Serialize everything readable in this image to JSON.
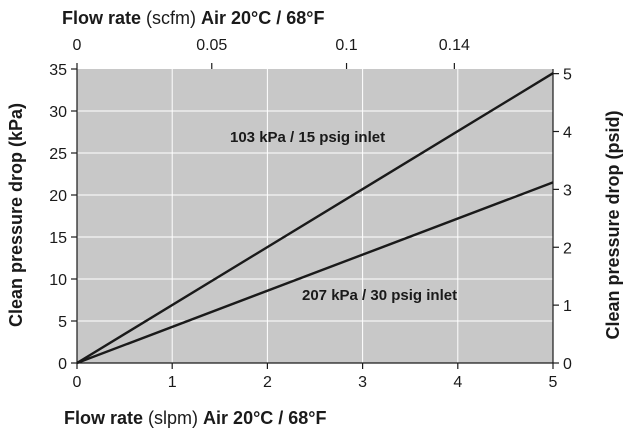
{
  "chart_data": {
    "type": "line",
    "plot_background": "#c8c8c8",
    "grid": true,
    "grid_color": "#ffffff",
    "line_color": "#1a1a1a",
    "x_bottom": {
      "title_bold_1": "Flow rate",
      "title_normal": "(slpm)",
      "title_bold_2": "Air 20°C / 68°F",
      "range": [
        0,
        5
      ],
      "ticks": [
        0,
        1,
        2,
        3,
        4,
        5
      ],
      "tick_labels": [
        "0",
        "1",
        "2",
        "3",
        "4",
        "5"
      ]
    },
    "x_top": {
      "title_bold_1": "Flow rate",
      "title_normal": "(scfm)",
      "title_bold_2": "Air 20°C / 68°F",
      "range": [
        0,
        0.1766
      ],
      "ticks": [
        0,
        0.05,
        0.1,
        0.14
      ],
      "tick_labels": [
        "0",
        "0.05",
        "0.1",
        "0.14"
      ]
    },
    "y_left": {
      "title": "Clean pressure drop (kPa)",
      "range": [
        0,
        35
      ],
      "ticks": [
        0,
        5,
        10,
        15,
        20,
        25,
        30,
        35
      ],
      "tick_labels": [
        "0",
        "5",
        "10",
        "15",
        "20",
        "25",
        "30",
        "35"
      ]
    },
    "y_right": {
      "title": "Clean pressure drop (psid)",
      "range": [
        0,
        5.08
      ],
      "ticks": [
        0,
        1,
        2,
        3,
        4,
        5
      ],
      "tick_labels": [
        "0",
        "1",
        "2",
        "3",
        "4",
        "5"
      ]
    },
    "series": [
      {
        "name": "103 kPa / 15 psig inlet",
        "x": [
          0,
          5
        ],
        "y": [
          0,
          34.5
        ]
      },
      {
        "name": "207 kPa / 30 psig inlet",
        "x": [
          0,
          5
        ],
        "y": [
          0,
          21.5
        ]
      }
    ]
  }
}
